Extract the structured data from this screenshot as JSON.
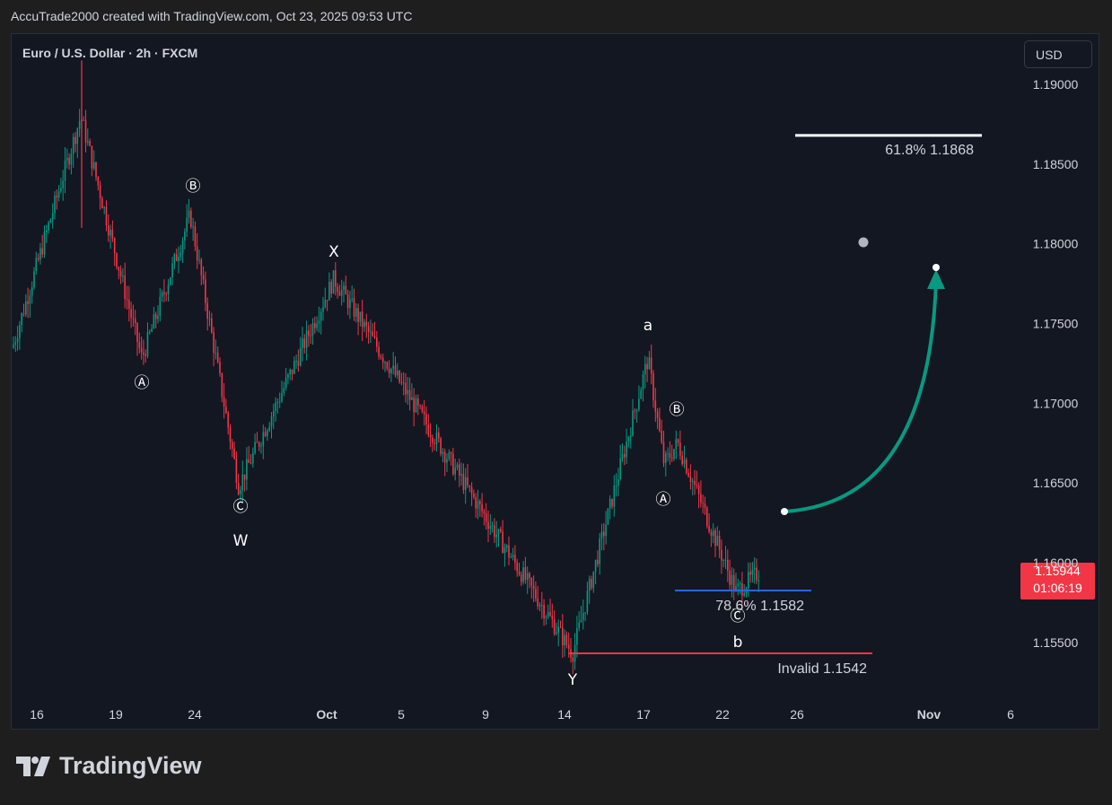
{
  "header": {
    "text": "AccuTrade2000 created with TradingView.com, Oct 23, 2025 09:53 UTC"
  },
  "chart_data": {
    "type": "candlestick",
    "symbol_title": "Euro / U.S. Dollar · 2h · FXCM",
    "currency_label": "USD",
    "y_ticks": [
      "1.19000",
      "1.18500",
      "1.18000",
      "1.17500",
      "1.17000",
      "1.16500",
      "1.16000",
      "1.15500"
    ],
    "ylim": [
      1.1525,
      1.1935
    ],
    "x_ticks": [
      "16",
      "19",
      "24",
      "Oct",
      "5",
      "9",
      "14",
      "17",
      "22",
      "26",
      "Nov",
      "6"
    ],
    "last_price": "1.15944",
    "countdown": "01:06:19",
    "anchors": [
      {
        "label": "start",
        "price": 1.1735
      },
      {
        "label": "swing",
        "price": 1.188
      },
      {
        "label": "Ⓐ",
        "price": 1.1728
      },
      {
        "label": "Ⓑ",
        "price": 1.1818
      },
      {
        "label": "Ⓒ",
        "price": 1.1648
      },
      {
        "label": "X",
        "price": 1.1778
      },
      {
        "label": "Y",
        "price": 1.1543
      },
      {
        "label": "a",
        "price": 1.1728
      },
      {
        "label": "Ⓐ",
        "price": 1.1662
      },
      {
        "label": "Ⓑ",
        "price": 1.1675
      },
      {
        "label": "Ⓒ/b",
        "price": 1.1582
      },
      {
        "label": "last",
        "price": 1.1594
      }
    ],
    "wave_labels": [
      "Ⓐ",
      "Ⓑ",
      "Ⓒ",
      "W",
      "X",
      "Y",
      "a",
      "Ⓑ",
      "Ⓐ",
      "Ⓒ",
      "b"
    ],
    "levels": [
      {
        "name": "fib-618",
        "text": "61.8%  1.1868",
        "price": 1.1868,
        "color": "#ffffff"
      },
      {
        "name": "fib-786",
        "text": "78.6%  1.1582",
        "price": 1.1582,
        "color": "#2962ff"
      },
      {
        "name": "invalid",
        "text": "Invalid  1.1542",
        "price": 1.1542,
        "color": "#f23645"
      }
    ],
    "projection": {
      "start_price": 1.163,
      "end_price": 1.1785,
      "color": "#089981"
    },
    "colors": {
      "up": "#089981",
      "down": "#f23645",
      "background": "#131722",
      "text": "#d1d4dc"
    }
  },
  "brand": {
    "name": "TradingView"
  }
}
